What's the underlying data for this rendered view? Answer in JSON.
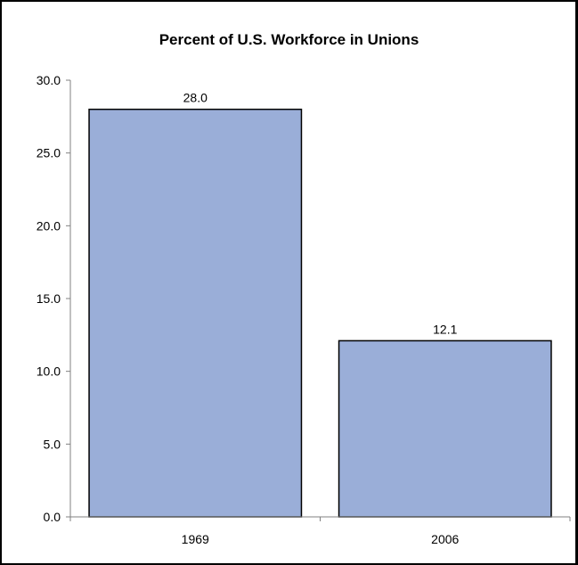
{
  "chart_data": {
    "type": "bar",
    "title": "Percent of U.S. Workforce in Unions",
    "xlabel": "",
    "ylabel": "",
    "categories": [
      "1969",
      "2006"
    ],
    "values": [
      28.0,
      12.1
    ],
    "data_labels": [
      "28.0",
      "12.1"
    ],
    "ylim": [
      0,
      30
    ],
    "yticks": [
      0,
      5,
      10,
      15,
      20,
      25,
      30
    ],
    "ytick_labels": [
      "0.0",
      "5.0",
      "10.0",
      "15.0",
      "20.0",
      "25.0",
      "30.0"
    ],
    "bar_color": "#9aaed8",
    "bar_edge_color": "#000000",
    "grid": false,
    "legend": "none"
  }
}
